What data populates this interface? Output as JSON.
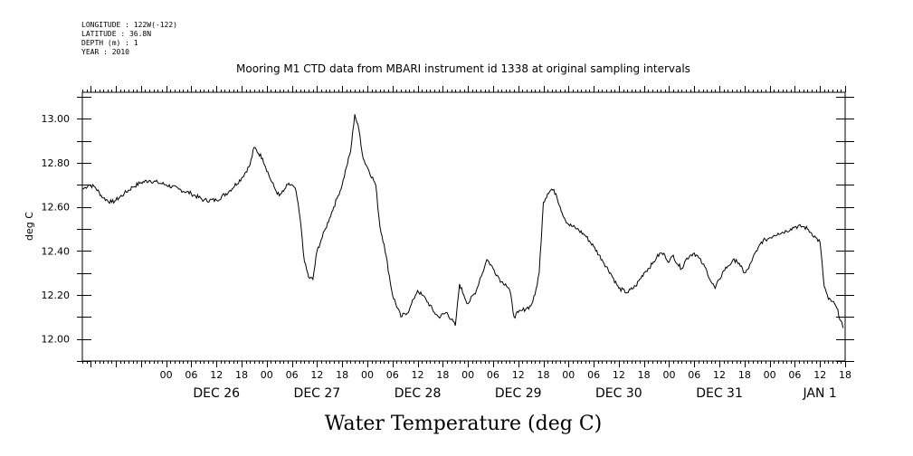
{
  "header": {
    "longitude": "LONGITUDE : 122W(-122)",
    "latitude": "LATITUDE : 36.8N",
    "depth": "DEPTH (m) : 1",
    "year": "YEAR : 2010"
  },
  "chart_data": {
    "type": "line",
    "title": "Mooring M1 CTD data from MBARI instrument id 1338 at original sampling intervals",
    "xlabel": "Water Temperature (deg C)",
    "ylabel": "deg C",
    "xlim_hours": [
      -20,
      162
    ],
    "ylim": [
      11.9,
      13.12
    ],
    "y_ticks": [
      "12.00",
      "12.20",
      "12.40",
      "12.60",
      "12.80",
      "13.00"
    ],
    "x_hour_ticks": [
      "00",
      "06",
      "12",
      "18",
      "00",
      "06",
      "12",
      "18",
      "00",
      "06",
      "12",
      "18",
      "00",
      "06",
      "12",
      "18",
      "00",
      "06",
      "12",
      "18",
      "00",
      "06",
      "12",
      "18",
      "00",
      "06",
      "12",
      "18"
    ],
    "x_day_labels": [
      "DEC 26",
      "DEC 27",
      "DEC 28",
      "DEC 29",
      "DEC 30",
      "DEC 31",
      "JAN  1"
    ],
    "grid": false,
    "series": [
      {
        "time_reference": "2010-12-26 00:00",
        "time_unit": "hours",
        "x": [
          -19.9,
          -18.5,
          -17,
          -15,
          -13,
          -12,
          -10,
          -8,
          -6,
          -4,
          -2,
          0,
          3,
          6,
          9,
          12,
          15,
          18,
          20,
          21,
          23,
          25,
          26,
          27,
          28,
          29,
          30,
          31,
          32,
          33,
          34,
          35,
          36,
          37,
          38,
          39,
          40,
          41,
          42,
          43,
          44,
          45,
          46,
          47,
          48,
          50,
          51,
          52,
          54,
          56,
          58,
          59,
          59.5,
          60,
          61,
          62,
          64,
          65,
          67,
          69,
          70,
          71,
          72,
          74,
          75,
          75.5,
          76,
          76.5,
          77,
          78,
          79,
          80,
          81,
          82,
          83,
          84,
          85,
          86,
          87,
          88,
          89,
          90,
          91,
          92,
          93,
          94,
          95,
          96,
          98,
          100,
          102,
          104,
          106,
          108,
          110,
          112,
          114,
          116,
          117,
          118,
          119,
          120,
          121,
          122,
          123,
          124,
          125,
          126,
          127,
          128,
          129,
          130,
          131,
          132,
          133,
          134,
          135,
          136,
          137,
          138,
          139,
          140,
          141,
          142,
          143,
          144,
          145,
          146,
          148,
          149,
          150,
          152,
          153,
          154,
          155,
          156,
          157,
          158,
          159,
          160,
          161.5
        ],
        "values": [
          12.68,
          12.7,
          12.69,
          12.64,
          12.62,
          12.63,
          12.66,
          12.69,
          12.71,
          12.72,
          12.71,
          12.7,
          12.68,
          12.66,
          12.63,
          12.63,
          12.67,
          12.73,
          12.79,
          12.87,
          12.82,
          12.72,
          12.68,
          12.65,
          12.67,
          12.7,
          12.7,
          12.67,
          12.54,
          12.35,
          12.28,
          12.27,
          12.4,
          12.45,
          12.5,
          12.55,
          12.6,
          12.65,
          12.7,
          12.78,
          12.85,
          13.02,
          12.95,
          12.82,
          12.78,
          12.7,
          12.51,
          12.43,
          12.2,
          12.1,
          12.13,
          12.18,
          12.2,
          12.22,
          12.2,
          12.18,
          12.12,
          12.1,
          12.12,
          12.06,
          12.25,
          12.2,
          12.16,
          12.22,
          12.28,
          12.3,
          12.33,
          12.36,
          12.35,
          12.32,
          12.29,
          12.26,
          12.25,
          12.22,
          12.1,
          12.12,
          12.13,
          12.14,
          12.15,
          12.2,
          12.3,
          12.62,
          12.66,
          12.68,
          12.66,
          12.6,
          12.55,
          12.52,
          12.5,
          12.47,
          12.42,
          12.36,
          12.3,
          12.23,
          12.21,
          12.24,
          12.3,
          12.34,
          12.37,
          12.39,
          12.38,
          12.35,
          12.38,
          12.34,
          12.32,
          12.36,
          12.38,
          12.39,
          12.37,
          12.34,
          12.31,
          12.26,
          12.23,
          12.27,
          12.31,
          12.33,
          12.35,
          12.36,
          12.33,
          12.3,
          12.32,
          12.37,
          12.4,
          12.44,
          12.45,
          12.46,
          12.47,
          12.48,
          12.49,
          12.5,
          12.51,
          12.51,
          12.5,
          12.48,
          12.46,
          12.44,
          12.24,
          12.18,
          12.17,
          12.14,
          12.05
        ]
      }
    ]
  }
}
